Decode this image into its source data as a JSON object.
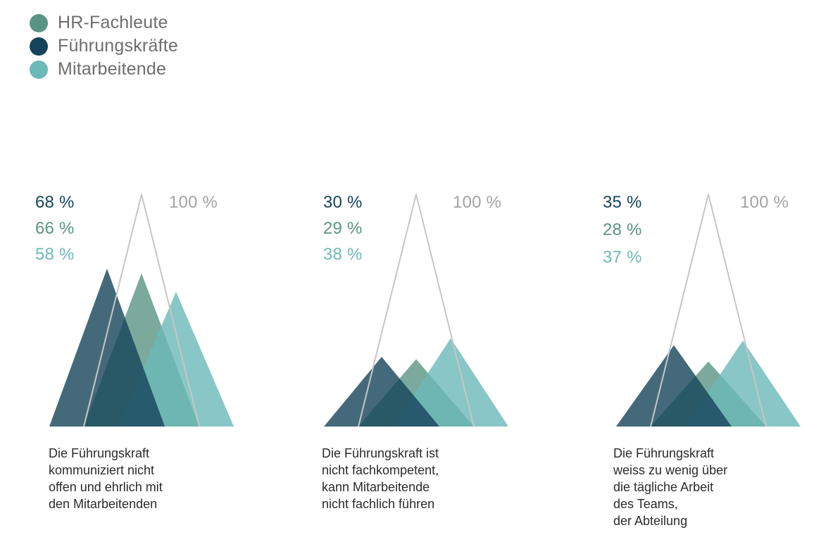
{
  "colors": {
    "HR-Fachleute": "#5a9483",
    "Führungskräfte": "#15445a",
    "Mitarbeitende": "#6bb9b8",
    "outline": "#c6c6c6",
    "full_label": "#a3a3a3"
  },
  "legend": [
    {
      "name": "HR-Fachleute",
      "color": "#5a9483"
    },
    {
      "name": "Führungskräfte",
      "color": "#15445a"
    },
    {
      "name": "Mitarbeitende",
      "color": "#6bb9b8"
    }
  ],
  "chart_data": [
    {
      "type": "area",
      "full_label": "100 %",
      "caption": [
        "Die Führungskraft",
        "kommuniziert nicht",
        "offen und ehrlich mit",
        "den Mitarbeitenden"
      ],
      "series": [
        {
          "name": "Führungskräfte",
          "value": 68,
          "label": "68 %"
        },
        {
          "name": "HR-Fachleute",
          "value": 66,
          "label": "66 %"
        },
        {
          "name": "Mitarbeitende",
          "value": 58,
          "label": "58 %"
        }
      ],
      "ylim": [
        0,
        100
      ]
    },
    {
      "type": "area",
      "full_label": "100 %",
      "caption": [
        "Die Führungskraft ist",
        "nicht fachkompetent,",
        "kann Mitarbeitende",
        "nicht fachlich führen"
      ],
      "series": [
        {
          "name": "Führungskräfte",
          "value": 30,
          "label": "30 %"
        },
        {
          "name": "HR-Fachleute",
          "value": 29,
          "label": "29 %"
        },
        {
          "name": "Mitarbeitende",
          "value": 38,
          "label": "38 %"
        }
      ],
      "ylim": [
        0,
        100
      ]
    },
    {
      "type": "area",
      "full_label": "100 %",
      "caption": [
        "Die Führungskraft",
        "weiss zu wenig über",
        "die tägliche Arbeit",
        "des Teams,",
        "der Abteilung"
      ],
      "series": [
        {
          "name": "Führungskräfte",
          "value": 35,
          "label": "35 %"
        },
        {
          "name": "HR-Fachleute",
          "value": 28,
          "label": "28 %"
        },
        {
          "name": "Mitarbeitende",
          "value": 37,
          "label": "37 %"
        }
      ],
      "ylim": [
        0,
        100
      ]
    }
  ]
}
